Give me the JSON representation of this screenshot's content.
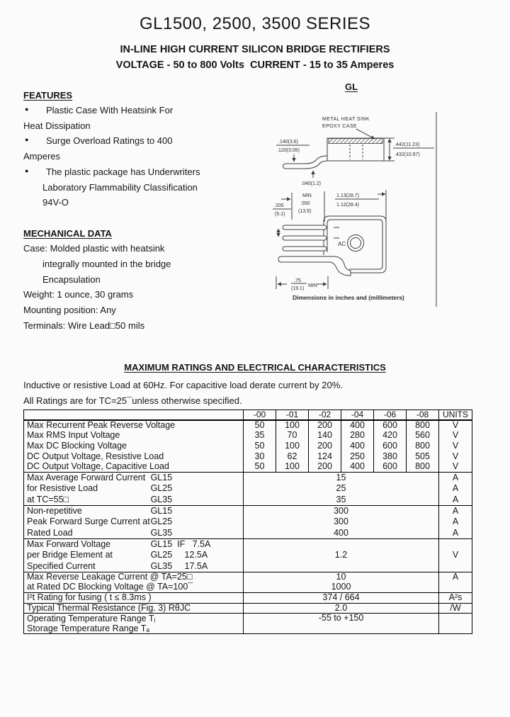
{
  "page": {
    "title": "GL1500, 2500, 3500 SERIES",
    "subtitle1": "IN-LINE HIGH CURRENT SILICON BRIDGE RECTIFIERS",
    "subtitle2": "VOLTAGE - 50 to 800 Volts  CURRENT - 15 to 35 Amperes"
  },
  "features": {
    "heading": "FEATURES",
    "items": [
      {
        "bullet": true,
        "indent": 0,
        "text": "Plastic Case With Heatsink For"
      },
      {
        "bullet": false,
        "indent": 0,
        "text": "Heat Dissipation"
      },
      {
        "bullet": true,
        "indent": 0,
        "text": "Surge Overload Ratings to 400"
      },
      {
        "bullet": false,
        "indent": 0,
        "text": "Amperes"
      },
      {
        "bullet": true,
        "indent": 0,
        "text": "The plastic package has Underwriters"
      },
      {
        "bullet": false,
        "indent": 1,
        "text": "Laboratory Flammability Classification"
      },
      {
        "bullet": false,
        "indent": 1,
        "text": "94V-O"
      }
    ]
  },
  "mechanical": {
    "heading": "MECHANICAL DATA",
    "items": [
      {
        "indent": 0,
        "text": "Case: Molded plastic with heatsink"
      },
      {
        "indent": 1,
        "text": "integrally mounted in the bridge"
      },
      {
        "indent": 1,
        "text": "Encapsulation"
      },
      {
        "indent": 0,
        "text": "Weight: 1 ounce, 30 grams"
      },
      {
        "indent": 0,
        "text": "Mounting position: Any"
      },
      {
        "indent": 0,
        "text": "Terminals: Wire Lead□50 mils"
      }
    ]
  },
  "figure": {
    "label": "GL",
    "callout_line1": "METAL HEAT SINK",
    "callout_line2": "EPOXY CASE",
    "side_left_top": ".140(3.6)",
    "side_left_bottom": ".120(3.05)",
    "side_right_top": ".442(11.23)",
    "side_right_bottom": ".432(10.97)",
    "side_bottom": ".040(1.2)",
    "front_min": "MIN",
    "front_pin_top": ".550",
    "front_pin_bottom": "(13.9)",
    "front_width_top": "1.13(28.7)",
    "front_width_bottom": "1.12(28.4)",
    "front_pitch_top": ".200",
    "front_pitch_bottom": "(5.1)",
    "front_base_top": ".75",
    "front_base_bottom": "(19.1)",
    "front_base_min": "MIN",
    "ac_label": "AC",
    "caption": "Dimensions in inches and (millimeters)"
  },
  "ratings": {
    "heading": "MAXIMUM RATINGS AND ELECTRICAL CHARACTERISTICS",
    "note1": "Inductive or resistive Load at 60Hz. For capacitive load derate current by 20%.",
    "note2": "All Ratings are for TC=25¯unless otherwise specified.",
    "table": {
      "columns": [
        "-00",
        "-01",
        "-02",
        "-04",
        "-06",
        "-08",
        "UNITS"
      ],
      "sections": [
        {
          "type": "grid",
          "rows": [
            {
              "label": "Max Recurrent Peak Reverse Voltage",
              "values": [
                "50",
                "100",
                "200",
                "400",
                "600",
                "800"
              ],
              "unit": "V"
            },
            {
              "label": "Max RMS Input Voltage",
              "values": [
                "35",
                "70",
                "140",
                "280",
                "420",
                "560"
              ],
              "unit": "V"
            },
            {
              "label": "Max DC Blocking Voltage",
              "values": [
                "50",
                "100",
                "200",
                "400",
                "600",
                "800"
              ],
              "unit": "V"
            },
            {
              "label": "DC Output Voltage, Resistive Load",
              "values": [
                "30",
                "62",
                "124",
                "250",
                "380",
                "505"
              ],
              "unit": "V"
            },
            {
              "label": "DC Output Voltage, Capacitive Load",
              "values": [
                "50",
                "100",
                "200",
                "400",
                "600",
                "800"
              ],
              "unit": "V"
            }
          ]
        },
        {
          "type": "lines",
          "rows": [
            {
              "label": "Max Average Forward Current",
              "model": "GL15",
              "value": "15",
              "unit": "A"
            },
            {
              "label": "for Resistive Load",
              "model": "GL25",
              "value": "25",
              "unit": "A"
            },
            {
              "label": "at TC=55□",
              "model": "GL35",
              "value": "35",
              "unit": "A"
            }
          ]
        },
        {
          "type": "lines",
          "rows": [
            {
              "label": "Non-repetitive",
              "model": "GL15",
              "value": "300",
              "unit": "A"
            },
            {
              "label": "Peak Forward Surge Current at",
              "model": "GL25",
              "value": "300",
              "unit": "A"
            },
            {
              "label": "Rated Load",
              "model": "GL35",
              "value": "400",
              "unit": "A"
            }
          ]
        },
        {
          "type": "span",
          "value": "1.2",
          "unit": "V",
          "valign": "middle",
          "rows": [
            {
              "label": "Max Forward Voltage",
              "model": "GL15  IF   7.5A"
            },
            {
              "label": "per Bridge Element at",
              "model": "GL25     12.5A"
            },
            {
              "label": "Specified Current",
              "model": "GL35     17.5A"
            }
          ]
        },
        {
          "type": "lines",
          "rows": [
            {
              "label": "Max Reverse Leakage Current @ TA=25□",
              "value": "10",
              "unit": "A"
            },
            {
              "label": "at Rated DC Blocking Voltage @ TA=100¯",
              "value": "1000",
              "unit": ""
            }
          ]
        },
        {
          "type": "lines",
          "rows": [
            {
              "label": "I²t Rating for fusing ( t ≤ 8.3ms )",
              "value": "374 / 664",
              "unit": "A²s"
            }
          ]
        },
        {
          "type": "lines",
          "rows": [
            {
              "label": "Typical Thermal Resistance (Fig. 3) RθJC",
              "value": "2.0",
              "unit": "/W"
            }
          ]
        },
        {
          "type": "span",
          "value": "-55 to +150",
          "unit": "",
          "valign": "top",
          "rows": [
            {
              "label": "Operating Temperature Range Tⱼ"
            },
            {
              "label": "Storage Temperature Range Tₐ"
            }
          ]
        }
      ]
    }
  }
}
